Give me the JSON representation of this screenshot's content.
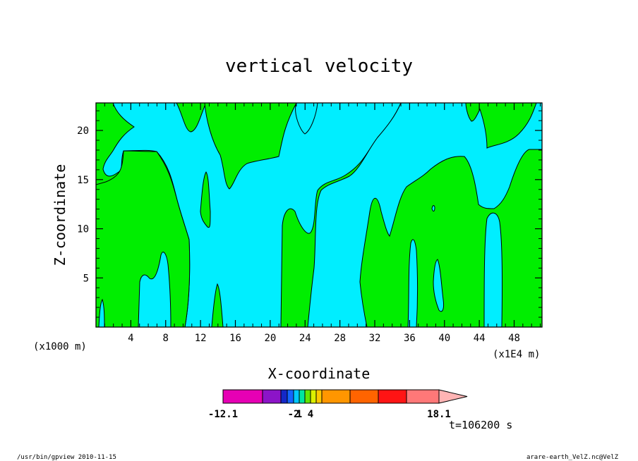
{
  "chart_data": {
    "type": "heatmap",
    "title": "vertical velocity",
    "xlabel": "X-coordinate",
    "ylabel": "Z-coordinate",
    "x_unit_left": "(x1000 m)",
    "x_unit_right": "(x1E4 m)",
    "x_ticks": [
      4,
      8,
      12,
      16,
      20,
      24,
      28,
      32,
      36,
      40,
      44,
      48
    ],
    "y_ticks": [
      5,
      10,
      15,
      20
    ],
    "xlim": [
      0,
      51.2
    ],
    "ylim": [
      0,
      22.8
    ],
    "colors": {
      "positive": "#00ee00",
      "negative": "#00eeff"
    },
    "colorbar": {
      "colors": [
        "#e600b4",
        "#8c14c8",
        "#1428c8",
        "#1464ff",
        "#00c8ff",
        "#00e6a0",
        "#64e600",
        "#dcf000",
        "#ffc800",
        "#ff9600",
        "#ff6400",
        "#ff1414",
        "#ff7878",
        "#ffb4b4"
      ],
      "labels": [
        {
          "value": -12.1,
          "text": "-12.1",
          "index": 0
        },
        {
          "value": -2,
          "text": "-2",
          "index": 4
        },
        {
          "value": 1,
          "text": "1",
          "index": 5
        },
        {
          "value": 4,
          "text": "4",
          "index": 7
        },
        {
          "value": 18.1,
          "text": "18.1",
          "index": 13
        }
      ]
    },
    "time_label": "t=106200 s"
  },
  "footer": {
    "left": "/usr/bin/gpview  2010-11-15",
    "right": "arare-earth_VelZ.nc@VelZ"
  }
}
